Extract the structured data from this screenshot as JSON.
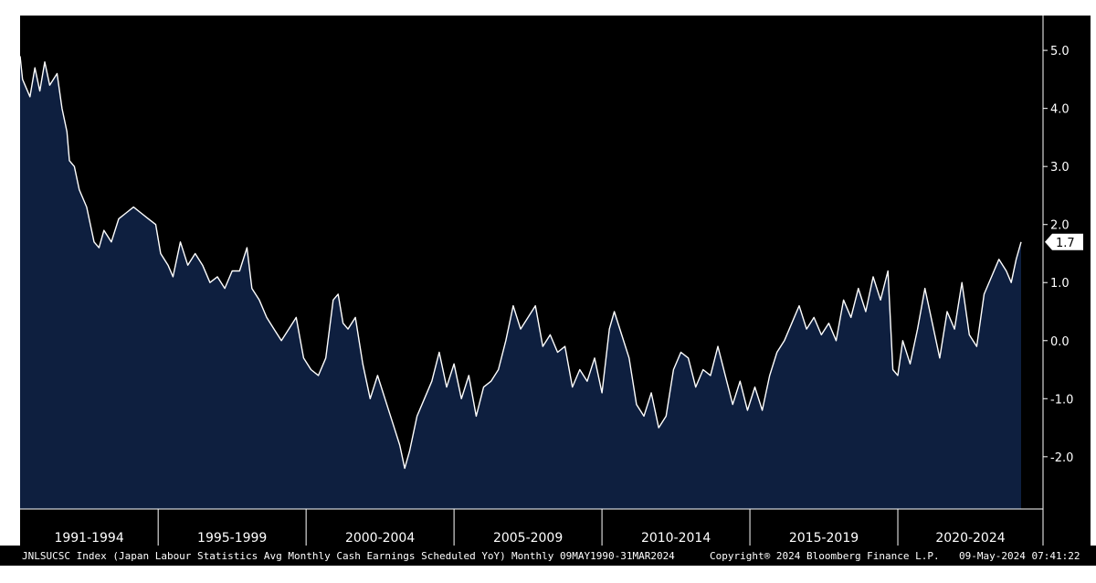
{
  "chart_data": {
    "type": "area",
    "title": "",
    "xlabel": "",
    "ylabel": "",
    "x_start": "1990-05",
    "x_end": "2024-03",
    "x_frequency": "monthly",
    "ylim": [
      -2.9,
      5.6
    ],
    "y_ticks": [
      "-2.0",
      "-1.0",
      "0.0",
      "1.0",
      "2.0",
      "3.0",
      "4.0",
      "5.0"
    ],
    "x_tick_labels": [
      "1991-1994",
      "1995-1999",
      "2000-2004",
      "2005-2009",
      "2010-2014",
      "2015-2019",
      "2020-2024"
    ],
    "last_value_label": "1.7",
    "grid": false,
    "colors": {
      "plot_background": "#000000",
      "area_fill": "#0e1f3f",
      "line": "#ffffff",
      "axis_text": "#ffffff"
    },
    "series": [
      {
        "points": [
          [
            "1990-05",
            4.9
          ],
          [
            "1990-06",
            4.5
          ],
          [
            "1990-07",
            4.4
          ],
          [
            "1990-09",
            4.2
          ],
          [
            "1990-11",
            4.7
          ],
          [
            "1991-01",
            4.3
          ],
          [
            "1991-03",
            4.8
          ],
          [
            "1991-05",
            4.4
          ],
          [
            "1991-08",
            4.6
          ],
          [
            "1991-10",
            4.0
          ],
          [
            "1991-12",
            3.6
          ],
          [
            "1992-01",
            3.1
          ],
          [
            "1992-03",
            3.0
          ],
          [
            "1992-05",
            2.6
          ],
          [
            "1992-08",
            2.3
          ],
          [
            "1992-11",
            1.7
          ],
          [
            "1993-01",
            1.6
          ],
          [
            "1993-03",
            1.9
          ],
          [
            "1993-06",
            1.7
          ],
          [
            "1993-09",
            2.1
          ],
          [
            "1993-12",
            2.2
          ],
          [
            "1994-03",
            2.3
          ],
          [
            "1994-06",
            2.2
          ],
          [
            "1994-09",
            2.1
          ],
          [
            "1994-12",
            2.0
          ],
          [
            "1995-02",
            1.5
          ],
          [
            "1995-05",
            1.3
          ],
          [
            "1995-07",
            1.1
          ],
          [
            "1995-10",
            1.7
          ],
          [
            "1996-01",
            1.3
          ],
          [
            "1996-04",
            1.5
          ],
          [
            "1996-07",
            1.3
          ],
          [
            "1996-10",
            1.0
          ],
          [
            "1997-01",
            1.1
          ],
          [
            "1997-04",
            0.9
          ],
          [
            "1997-07",
            1.2
          ],
          [
            "1997-10",
            1.2
          ],
          [
            "1998-01",
            1.6
          ],
          [
            "1998-03",
            0.9
          ],
          [
            "1998-06",
            0.7
          ],
          [
            "1998-09",
            0.4
          ],
          [
            "1998-12",
            0.2
          ],
          [
            "1999-03",
            0.0
          ],
          [
            "1999-06",
            0.2
          ],
          [
            "1999-09",
            0.4
          ],
          [
            "1999-12",
            -0.3
          ],
          [
            "2000-03",
            -0.5
          ],
          [
            "2000-06",
            -0.6
          ],
          [
            "2000-09",
            -0.3
          ],
          [
            "2000-12",
            0.7
          ],
          [
            "2001-02",
            0.8
          ],
          [
            "2001-04",
            0.3
          ],
          [
            "2001-06",
            0.2
          ],
          [
            "2001-09",
            0.4
          ],
          [
            "2001-12",
            -0.4
          ],
          [
            "2002-03",
            -1.0
          ],
          [
            "2002-06",
            -0.6
          ],
          [
            "2002-09",
            -1.0
          ],
          [
            "2002-12",
            -1.4
          ],
          [
            "2003-03",
            -1.8
          ],
          [
            "2003-05",
            -2.2
          ],
          [
            "2003-07",
            -1.9
          ],
          [
            "2003-10",
            -1.3
          ],
          [
            "2004-01",
            -1.0
          ],
          [
            "2004-04",
            -0.7
          ],
          [
            "2004-07",
            -0.2
          ],
          [
            "2004-10",
            -0.8
          ],
          [
            "2005-01",
            -0.4
          ],
          [
            "2005-04",
            -1.0
          ],
          [
            "2005-07",
            -0.6
          ],
          [
            "2005-10",
            -1.3
          ],
          [
            "2006-01",
            -0.8
          ],
          [
            "2006-04",
            -0.7
          ],
          [
            "2006-07",
            -0.5
          ],
          [
            "2006-10",
            0.0
          ],
          [
            "2007-01",
            0.6
          ],
          [
            "2007-04",
            0.2
          ],
          [
            "2007-07",
            0.4
          ],
          [
            "2007-10",
            0.6
          ],
          [
            "2008-01",
            -0.1
          ],
          [
            "2008-04",
            0.1
          ],
          [
            "2008-07",
            -0.2
          ],
          [
            "2008-10",
            -0.1
          ],
          [
            "2009-01",
            -0.8
          ],
          [
            "2009-04",
            -0.5
          ],
          [
            "2009-07",
            -0.7
          ],
          [
            "2009-10",
            -0.3
          ],
          [
            "2010-01",
            -0.9
          ],
          [
            "2010-04",
            0.2
          ],
          [
            "2010-06",
            0.5
          ],
          [
            "2010-09",
            0.1
          ],
          [
            "2010-12",
            -0.3
          ],
          [
            "2011-03",
            -1.1
          ],
          [
            "2011-06",
            -1.3
          ],
          [
            "2011-09",
            -0.9
          ],
          [
            "2011-12",
            -1.5
          ],
          [
            "2012-03",
            -1.3
          ],
          [
            "2012-06",
            -0.5
          ],
          [
            "2012-09",
            -0.2
          ],
          [
            "2012-12",
            -0.3
          ],
          [
            "2013-03",
            -0.8
          ],
          [
            "2013-06",
            -0.5
          ],
          [
            "2013-09",
            -0.6
          ],
          [
            "2013-12",
            -0.1
          ],
          [
            "2014-03",
            -0.6
          ],
          [
            "2014-06",
            -1.1
          ],
          [
            "2014-09",
            -0.7
          ],
          [
            "2014-12",
            -1.2
          ],
          [
            "2015-03",
            -0.8
          ],
          [
            "2015-06",
            -1.2
          ],
          [
            "2015-09",
            -0.6
          ],
          [
            "2015-12",
            -0.2
          ],
          [
            "2016-03",
            0.0
          ],
          [
            "2016-06",
            0.3
          ],
          [
            "2016-09",
            0.6
          ],
          [
            "2016-12",
            0.2
          ],
          [
            "2017-03",
            0.4
          ],
          [
            "2017-06",
            0.1
          ],
          [
            "2017-09",
            0.3
          ],
          [
            "2017-12",
            0.0
          ],
          [
            "2018-03",
            0.7
          ],
          [
            "2018-06",
            0.4
          ],
          [
            "2018-09",
            0.9
          ],
          [
            "2018-12",
            0.5
          ],
          [
            "2019-03",
            1.1
          ],
          [
            "2019-06",
            0.7
          ],
          [
            "2019-09",
            1.2
          ],
          [
            "2019-11",
            -0.5
          ],
          [
            "2020-01",
            -0.6
          ],
          [
            "2020-03",
            0.0
          ],
          [
            "2020-06",
            -0.4
          ],
          [
            "2020-09",
            0.2
          ],
          [
            "2020-12",
            0.9
          ],
          [
            "2021-03",
            0.3
          ],
          [
            "2021-06",
            -0.3
          ],
          [
            "2021-09",
            0.5
          ],
          [
            "2021-12",
            0.2
          ],
          [
            "2022-03",
            1.0
          ],
          [
            "2022-06",
            0.1
          ],
          [
            "2022-09",
            -0.1
          ],
          [
            "2022-12",
            0.8
          ],
          [
            "2023-03",
            1.1
          ],
          [
            "2023-06",
            1.4
          ],
          [
            "2023-09",
            1.2
          ],
          [
            "2023-11",
            1.0
          ],
          [
            "2024-01",
            1.4
          ],
          [
            "2024-03",
            1.7
          ]
        ]
      }
    ]
  },
  "footer": {
    "ticker": "JNLSUCSC Index (Japan Labour Statistics Avg Monthly Cash Earnings Scheduled YoY)",
    "range": "Monthly 09MAY1990-31MAR2024",
    "copyright": "Copyright® 2024 Bloomberg Finance L.P.",
    "timestamp": "09-May-2024 07:41:22"
  }
}
